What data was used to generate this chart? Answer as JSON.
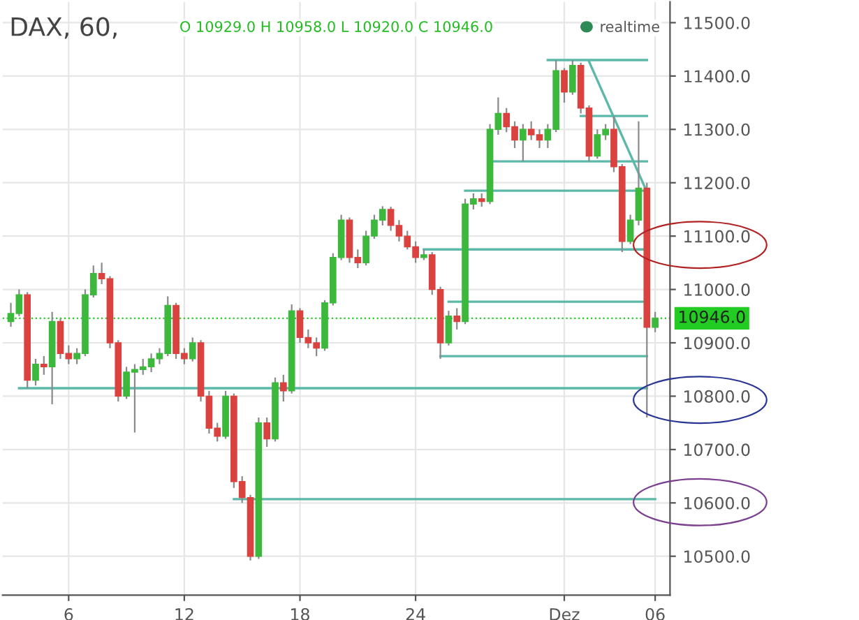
{
  "chart_data": {
    "type": "candlestick",
    "title": "DAX, 60,",
    "annotations": [
      "O 10929.0 H 10958.0 L 10920.0 C 10946.0",
      "realtime"
    ],
    "categories": [
      null,
      null,
      null,
      null,
      null,
      null,
      null,
      "6",
      null,
      null,
      null,
      null,
      null,
      null,
      null,
      null,
      null,
      null,
      null,
      null,
      null,
      "12",
      null,
      null,
      null,
      null,
      null,
      null,
      null,
      null,
      null,
      null,
      null,
      null,
      null,
      "18",
      null,
      null,
      null,
      null,
      null,
      null,
      null,
      null,
      null,
      null,
      null,
      null,
      null,
      "24",
      null,
      null,
      null,
      null,
      null,
      null,
      null,
      null,
      null,
      null,
      null,
      null,
      null,
      null,
      null,
      null,
      null,
      "Dez",
      null,
      null,
      null,
      null,
      null,
      null,
      null,
      null,
      null,
      null,
      "06"
    ],
    "ohlc": [
      [
        10940,
        10975,
        10930,
        10955
      ],
      [
        10955,
        11000,
        10950,
        10990
      ],
      [
        10990,
        10995,
        10815,
        10830
      ],
      [
        10830,
        10870,
        10820,
        10860
      ],
      [
        10860,
        10875,
        10840,
        10855
      ],
      [
        10855,
        10958,
        10785,
        10940
      ],
      [
        10940,
        10945,
        10870,
        10880
      ],
      [
        10880,
        10895,
        10860,
        10870
      ],
      [
        10870,
        10890,
        10860,
        10880
      ],
      [
        10880,
        11000,
        10875,
        10990
      ],
      [
        10990,
        11045,
        10985,
        11030
      ],
      [
        11030,
        11050,
        11010,
        11020
      ],
      [
        11020,
        11025,
        10890,
        10900
      ],
      [
        10900,
        10905,
        10790,
        10800
      ],
      [
        10800,
        10855,
        10795,
        10845
      ],
      [
        10845,
        10860,
        10732,
        10850
      ],
      [
        10850,
        10870,
        10840,
        10855
      ],
      [
        10855,
        10880,
        10845,
        10870
      ],
      [
        10870,
        10890,
        10860,
        10880
      ],
      [
        10880,
        10987,
        10875,
        10970
      ],
      [
        10970,
        10975,
        10870,
        10880
      ],
      [
        10880,
        10890,
        10860,
        10870
      ],
      [
        10870,
        10910,
        10865,
        10900
      ],
      [
        10900,
        10905,
        10790,
        10800
      ],
      [
        10800,
        10810,
        10730,
        10740
      ],
      [
        10740,
        10750,
        10715,
        10725
      ],
      [
        10725,
        10810,
        10720,
        10800
      ],
      [
        10800,
        10805,
        10628,
        10640
      ],
      [
        10640,
        10650,
        10600,
        10610
      ],
      [
        10610,
        10615,
        10492,
        10500
      ],
      [
        10500,
        10760,
        10495,
        10750
      ],
      [
        10750,
        10760,
        10705,
        10720
      ],
      [
        10720,
        10835,
        10715,
        10825
      ],
      [
        10825,
        10840,
        10790,
        10810
      ],
      [
        10810,
        10972,
        10805,
        10960
      ],
      [
        10960,
        10965,
        10900,
        10910
      ],
      [
        10910,
        10925,
        10890,
        10900
      ],
      [
        10900,
        10910,
        10875,
        10890
      ],
      [
        10890,
        10980,
        10885,
        10975
      ],
      [
        10975,
        11068,
        10970,
        11060
      ],
      [
        11060,
        11140,
        11055,
        11130
      ],
      [
        11130,
        11135,
        11050,
        11060
      ],
      [
        11060,
        11075,
        11040,
        11050
      ],
      [
        11050,
        11110,
        11045,
        11100
      ],
      [
        11100,
        11140,
        11095,
        11130
      ],
      [
        11130,
        11156,
        11120,
        11150
      ],
      [
        11150,
        11155,
        11110,
        11120
      ],
      [
        11120,
        11130,
        11090,
        11100
      ],
      [
        11100,
        11110,
        11075,
        11080
      ],
      [
        11080,
        11090,
        11050,
        11060
      ],
      [
        11060,
        11075,
        11055,
        11065
      ],
      [
        11065,
        11070,
        10990,
        11000
      ],
      [
        11000,
        11005,
        10870,
        10900
      ],
      [
        10900,
        10960,
        10895,
        10950
      ],
      [
        10950,
        10965,
        10925,
        10940
      ],
      [
        10940,
        11170,
        10935,
        11160
      ],
      [
        11160,
        11180,
        11150,
        11170
      ],
      [
        11170,
        11180,
        11155,
        11165
      ],
      [
        11165,
        11310,
        11160,
        11300
      ],
      [
        11300,
        11360,
        11290,
        11330
      ],
      [
        11330,
        11340,
        11295,
        11305
      ],
      [
        11305,
        11315,
        11265,
        11280
      ],
      [
        11280,
        11310,
        11240,
        11300
      ],
      [
        11300,
        11315,
        11280,
        11290
      ],
      [
        11290,
        11300,
        11265,
        11280
      ],
      [
        11280,
        11310,
        11265,
        11300
      ],
      [
        11300,
        11430,
        11295,
        11410
      ],
      [
        11410,
        11415,
        11350,
        11370
      ],
      [
        11370,
        11430,
        11365,
        11420
      ],
      [
        11420,
        11425,
        11330,
        11340
      ],
      [
        11340,
        11345,
        11240,
        11250
      ],
      [
        11250,
        11300,
        11245,
        11290
      ],
      [
        11290,
        11310,
        11280,
        11300
      ],
      [
        11300,
        11325,
        11220,
        11230
      ],
      [
        11230,
        11235,
        11070,
        11090
      ],
      [
        11090,
        11140,
        11085,
        11130
      ],
      [
        11130,
        11315,
        11120,
        11190
      ],
      [
        11190,
        11200,
        10760,
        10929
      ],
      [
        10929,
        10958,
        10920,
        10946
      ]
    ],
    "colors": [
      "#3cb83c",
      "#3cb83c",
      "#d9423f",
      "#3cb83c",
      "#d9423f",
      "#3cb83c",
      "#d9423f",
      "#d9423f",
      "#3cb83c",
      "#3cb83c",
      "#3cb83c",
      "#d9423f",
      "#d9423f",
      "#d9423f",
      "#3cb83c",
      "#3cb83c",
      "#3cb83c",
      "#3cb83c",
      "#3cb83c",
      "#3cb83c",
      "#d9423f",
      "#d9423f",
      "#3cb83c",
      "#d9423f",
      "#d9423f",
      "#d9423f",
      "#3cb83c",
      "#d9423f",
      "#d9423f",
      "#d9423f",
      "#3cb83c",
      "#d9423f",
      "#3cb83c",
      "#d9423f",
      "#3cb83c",
      "#d9423f",
      "#d9423f",
      "#d9423f",
      "#3cb83c",
      "#3cb83c",
      "#3cb83c",
      "#d9423f",
      "#d9423f",
      "#3cb83c",
      "#3cb83c",
      "#3cb83c",
      "#d9423f",
      "#d9423f",
      "#d9423f",
      "#d9423f",
      "#3cb83c",
      "#d9423f",
      "#d9423f",
      "#3cb83c",
      "#d9423f",
      "#3cb83c",
      "#3cb83c",
      "#d9423f",
      "#3cb83c",
      "#3cb83c",
      "#d9423f",
      "#d9423f",
      "#3cb83c",
      "#d9423f",
      "#d9423f",
      "#3cb83c",
      "#3cb83c",
      "#d9423f",
      "#3cb83c",
      "#d9423f",
      "#d9423f",
      "#3cb83c",
      "#3cb83c",
      "#d9423f",
      "#d9423f",
      "#3cb83c",
      "#3cb83c",
      "#d9423f",
      "#3cb83c"
    ],
    "series": [
      {
        "type": "line",
        "color": "#5cb8a8",
        "values": [
          null,
          null,
          null,
          null,
          null,
          null,
          null,
          null,
          null,
          null,
          null,
          null,
          null,
          null,
          null,
          null,
          null,
          null,
          null,
          null,
          null,
          null,
          null,
          null,
          null,
          null,
          null,
          null,
          null,
          null,
          null,
          null,
          null,
          null,
          null,
          null,
          null,
          null,
          null,
          null,
          null,
          null,
          null,
          null,
          null,
          null,
          null,
          null,
          null,
          null,
          null,
          null,
          null,
          null,
          null,
          null,
          null,
          null,
          null,
          null,
          null,
          null,
          null,
          null,
          null,
          11430,
          null,
          null,
          null,
          null,
          null,
          null,
          null,
          null,
          null,
          null,
          null,
          11430,
          null
        ]
      },
      {
        "type": "line",
        "color": "#5cb8a8",
        "values": [
          null,
          null,
          null,
          null,
          null,
          null,
          null,
          null,
          null,
          null,
          null,
          null,
          null,
          null,
          null,
          null,
          null,
          null,
          null,
          null,
          null,
          null,
          null,
          null,
          null,
          null,
          null,
          null,
          null,
          null,
          null,
          null,
          null,
          null,
          null,
          null,
          null,
          null,
          null,
          null,
          null,
          null,
          null,
          null,
          null,
          null,
          null,
          null,
          null,
          null,
          null,
          null,
          null,
          null,
          null,
          null,
          null,
          null,
          null,
          null,
          null,
          null,
          null,
          null,
          null,
          null,
          null,
          null,
          null,
          null,
          11427,
          null,
          null,
          null,
          null,
          null,
          null,
          11183,
          null
        ]
      },
      {
        "type": "line",
        "color": "#5cb8a8",
        "values": [
          null,
          null,
          null,
          null,
          null,
          null,
          null,
          null,
          null,
          null,
          null,
          null,
          null,
          null,
          null,
          null,
          null,
          null,
          null,
          null,
          null,
          null,
          null,
          null,
          null,
          null,
          null,
          null,
          null,
          null,
          null,
          null,
          null,
          null,
          null,
          null,
          null,
          null,
          null,
          null,
          null,
          null,
          null,
          null,
          null,
          null,
          null,
          null,
          null,
          null,
          null,
          null,
          null,
          null,
          null,
          null,
          null,
          null,
          null,
          null,
          null,
          null,
          null,
          null,
          null,
          null,
          null,
          null,
          null,
          11325,
          null,
          null,
          null,
          null,
          null,
          null,
          null,
          11325,
          null
        ]
      },
      {
        "type": "line",
        "color": "#5cb8a8",
        "values": [
          null,
          null,
          null,
          null,
          null,
          null,
          null,
          null,
          null,
          null,
          null,
          null,
          null,
          null,
          null,
          null,
          null,
          null,
          null,
          null,
          null,
          null,
          null,
          null,
          null,
          null,
          null,
          null,
          null,
          null,
          null,
          null,
          null,
          null,
          null,
          null,
          null,
          null,
          null,
          null,
          null,
          null,
          null,
          null,
          null,
          null,
          null,
          null,
          null,
          null,
          null,
          null,
          null,
          null,
          null,
          null,
          null,
          null,
          11240,
          null,
          null,
          null,
          null,
          null,
          null,
          null,
          null,
          null,
          null,
          null,
          null,
          null,
          null,
          null,
          null,
          null,
          null,
          11240,
          null
        ]
      },
      {
        "type": "line",
        "color": "#5cb8a8",
        "values": [
          null,
          null,
          null,
          null,
          null,
          null,
          null,
          null,
          null,
          null,
          null,
          null,
          null,
          null,
          null,
          null,
          null,
          null,
          null,
          null,
          null,
          null,
          null,
          null,
          null,
          null,
          null,
          null,
          null,
          null,
          null,
          null,
          null,
          null,
          null,
          null,
          null,
          null,
          null,
          null,
          null,
          null,
          null,
          null,
          null,
          null,
          null,
          null,
          null,
          null,
          null,
          null,
          null,
          null,
          null,
          11185,
          null,
          null,
          null,
          null,
          null,
          null,
          null,
          null,
          null,
          null,
          null,
          null,
          null,
          null,
          null,
          null,
          null,
          null,
          null,
          null,
          null,
          11185,
          null
        ]
      },
      {
        "type": "line",
        "color": "#5cb8a8",
        "values": [
          null,
          null,
          null,
          null,
          null,
          null,
          null,
          null,
          null,
          null,
          null,
          null,
          null,
          null,
          null,
          null,
          null,
          null,
          null,
          null,
          null,
          null,
          null,
          null,
          null,
          null,
          null,
          null,
          null,
          null,
          null,
          null,
          null,
          null,
          null,
          null,
          null,
          null,
          null,
          null,
          null,
          null,
          null,
          null,
          null,
          null,
          null,
          null,
          null,
          null,
          11075,
          null,
          null,
          null,
          null,
          null,
          null,
          null,
          null,
          null,
          null,
          null,
          null,
          null,
          null,
          null,
          null,
          null,
          null,
          null,
          null,
          null,
          null,
          null,
          null,
          null,
          null,
          11075,
          null
        ]
      },
      {
        "type": "line",
        "color": "#5cb8a8",
        "values": [
          null,
          null,
          null,
          null,
          null,
          null,
          null,
          null,
          null,
          null,
          null,
          null,
          null,
          null,
          null,
          null,
          null,
          null,
          null,
          null,
          null,
          null,
          null,
          null,
          null,
          null,
          null,
          null,
          null,
          null,
          null,
          null,
          null,
          null,
          null,
          null,
          null,
          null,
          null,
          null,
          null,
          null,
          null,
          null,
          null,
          null,
          null,
          null,
          null,
          null,
          null,
          null,
          null,
          10977,
          null,
          null,
          null,
          null,
          null,
          null,
          null,
          null,
          null,
          null,
          null,
          null,
          null,
          null,
          null,
          null,
          null,
          null,
          null,
          null,
          null,
          null,
          null,
          10977,
          null
        ]
      },
      {
        "type": "line",
        "color": "#5cb8a8",
        "values": [
          null,
          null,
          null,
          null,
          null,
          null,
          null,
          null,
          null,
          null,
          null,
          null,
          null,
          null,
          null,
          null,
          null,
          null,
          null,
          null,
          null,
          null,
          null,
          null,
          null,
          null,
          null,
          null,
          null,
          null,
          null,
          null,
          null,
          null,
          null,
          null,
          null,
          null,
          null,
          null,
          null,
          null,
          null,
          null,
          null,
          null,
          null,
          null,
          null,
          null,
          null,
          null,
          10875,
          null,
          null,
          null,
          null,
          null,
          null,
          null,
          null,
          null,
          null,
          null,
          null,
          null,
          null,
          null,
          null,
          null,
          null,
          null,
          null,
          null,
          null,
          null,
          null,
          10875,
          null
        ]
      },
      {
        "type": "line",
        "color": "#5cb8a8",
        "values": [
          null,
          10815,
          null,
          null,
          null,
          null,
          null,
          null,
          null,
          null,
          null,
          null,
          null,
          null,
          null,
          null,
          null,
          null,
          null,
          null,
          null,
          null,
          null,
          null,
          null,
          null,
          null,
          null,
          null,
          null,
          null,
          null,
          null,
          null,
          null,
          null,
          null,
          null,
          null,
          null,
          null,
          null,
          null,
          null,
          null,
          null,
          null,
          null,
          null,
          null,
          null,
          null,
          null,
          null,
          null,
          null,
          null,
          null,
          null,
          null,
          null,
          null,
          null,
          null,
          null,
          null,
          null,
          null,
          null,
          null,
          null,
          null,
          null,
          null,
          null,
          null,
          null,
          10815,
          null
        ]
      },
      {
        "type": "line",
        "color": "#5cb8a8",
        "values": [
          null,
          null,
          null,
          null,
          null,
          null,
          null,
          null,
          null,
          null,
          null,
          null,
          null,
          null,
          null,
          null,
          null,
          null,
          null,
          null,
          null,
          null,
          null,
          null,
          null,
          null,
          null,
          10607,
          null,
          null,
          null,
          null,
          null,
          null,
          null,
          null,
          null,
          null,
          null,
          null,
          null,
          null,
          null,
          null,
          null,
          null,
          null,
          null,
          null,
          null,
          null,
          null,
          null,
          null,
          null,
          null,
          null,
          null,
          null,
          null,
          null,
          null,
          null,
          null,
          null,
          null,
          null,
          null,
          null,
          null,
          null,
          null,
          null,
          null,
          null,
          null,
          null,
          null,
          10607
        ]
      }
    ],
    "ref_lines": [
      {
        "axis": "y",
        "value": 10946,
        "label": "10946.0",
        "color": "#22cc22",
        "line_style": "dotted"
      }
    ],
    "ylim": [
      10427,
      11539
    ],
    "yticks": [
      {
        "value": 10500,
        "label": "10500.0"
      },
      {
        "value": 10600,
        "label": "10600.0"
      },
      {
        "value": 10700,
        "label": "10700.0"
      },
      {
        "value": 10800,
        "label": "10800.0"
      },
      {
        "value": 10900,
        "label": "10900.0"
      },
      {
        "value": 11000,
        "label": "11000.0"
      },
      {
        "value": 11100,
        "label": "11100.0"
      },
      {
        "value": 11200,
        "label": "11200.0"
      },
      {
        "value": 11300,
        "label": "11300.0"
      },
      {
        "value": 11400,
        "label": "11400.0"
      },
      {
        "value": 11500,
        "label": "11500.0"
      }
    ],
    "grid": true
  }
}
